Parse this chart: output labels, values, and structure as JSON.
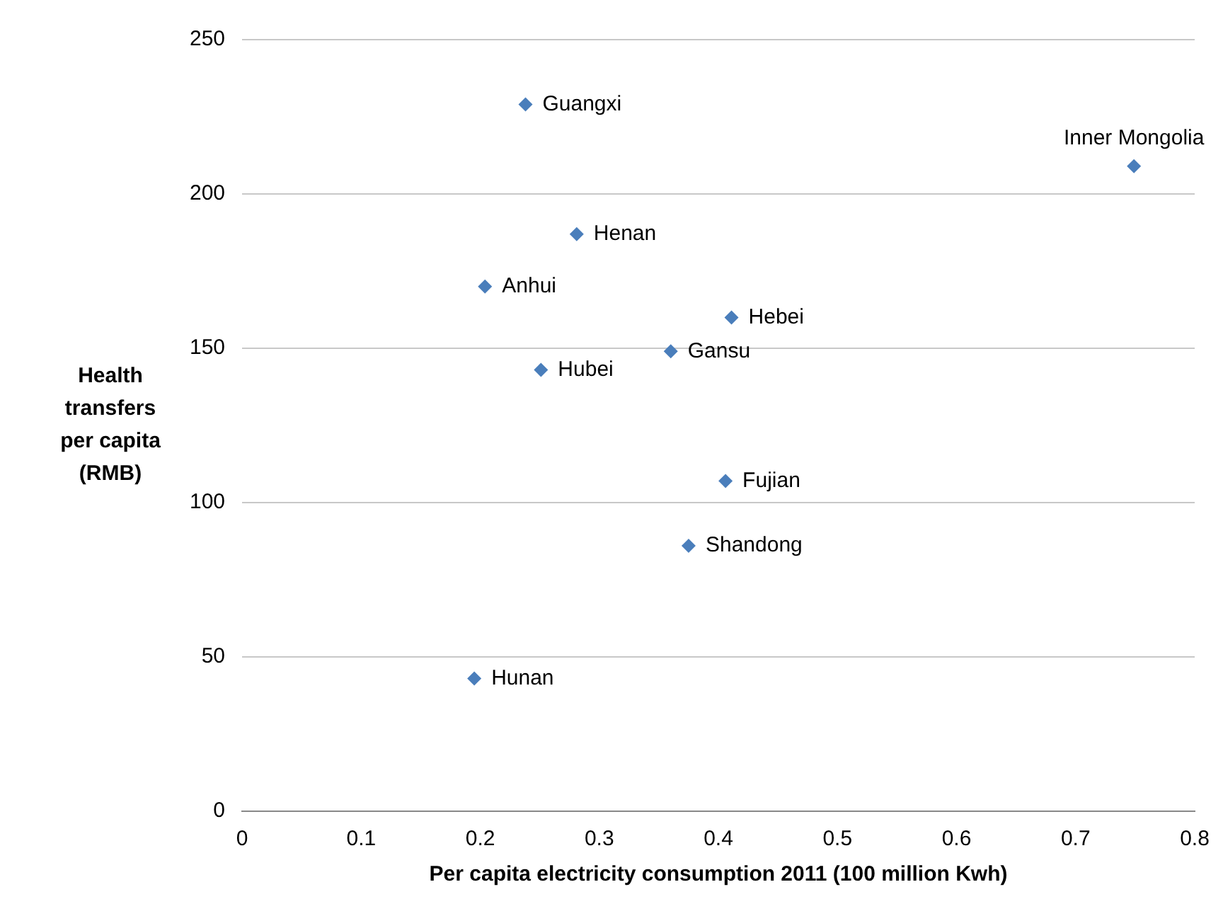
{
  "chart_data": {
    "type": "scatter",
    "xlabel": "Per capita electricity consumption 2011 (100 million Kwh)",
    "ylabel": "Health transfers per capita (RMB)",
    "series": [
      {
        "color": "#4a7ebb",
        "x": [
          0.238,
          0.749,
          0.281,
          0.204,
          0.411,
          0.36,
          0.251,
          0.406,
          0.375,
          0.195
        ],
        "values": [
          229,
          209,
          187,
          170,
          160,
          149,
          143,
          107,
          86,
          43
        ]
      }
    ],
    "annotations": [
      {
        "text": "Guangxi",
        "x": 0.238,
        "y": 229
      },
      {
        "text": "Inner Mongolia",
        "x": 0.749,
        "y": 209
      },
      {
        "text": "Henan",
        "x": 0.281,
        "y": 187
      },
      {
        "text": "Anhui",
        "x": 0.204,
        "y": 170
      },
      {
        "text": "Hebei",
        "x": 0.411,
        "y": 160
      },
      {
        "text": "Gansu",
        "x": 0.36,
        "y": 149
      },
      {
        "text": "Hubei",
        "x": 0.251,
        "y": 143
      },
      {
        "text": "Fujian",
        "x": 0.406,
        "y": 107
      },
      {
        "text": "Shandong",
        "x": 0.375,
        "y": 86
      },
      {
        "text": "Hunan",
        "x": 0.195,
        "y": 43
      }
    ],
    "xlim": [
      0,
      0.8
    ],
    "xticks": [
      0,
      0.1,
      0.2,
      0.3,
      0.4,
      0.5,
      0.6,
      0.7,
      0.8
    ],
    "ylim": [
      0,
      250
    ],
    "yticks": [
      0,
      50,
      100,
      150,
      200,
      250
    ],
    "grid": "y",
    "marker": "diamond",
    "legend": false
  }
}
